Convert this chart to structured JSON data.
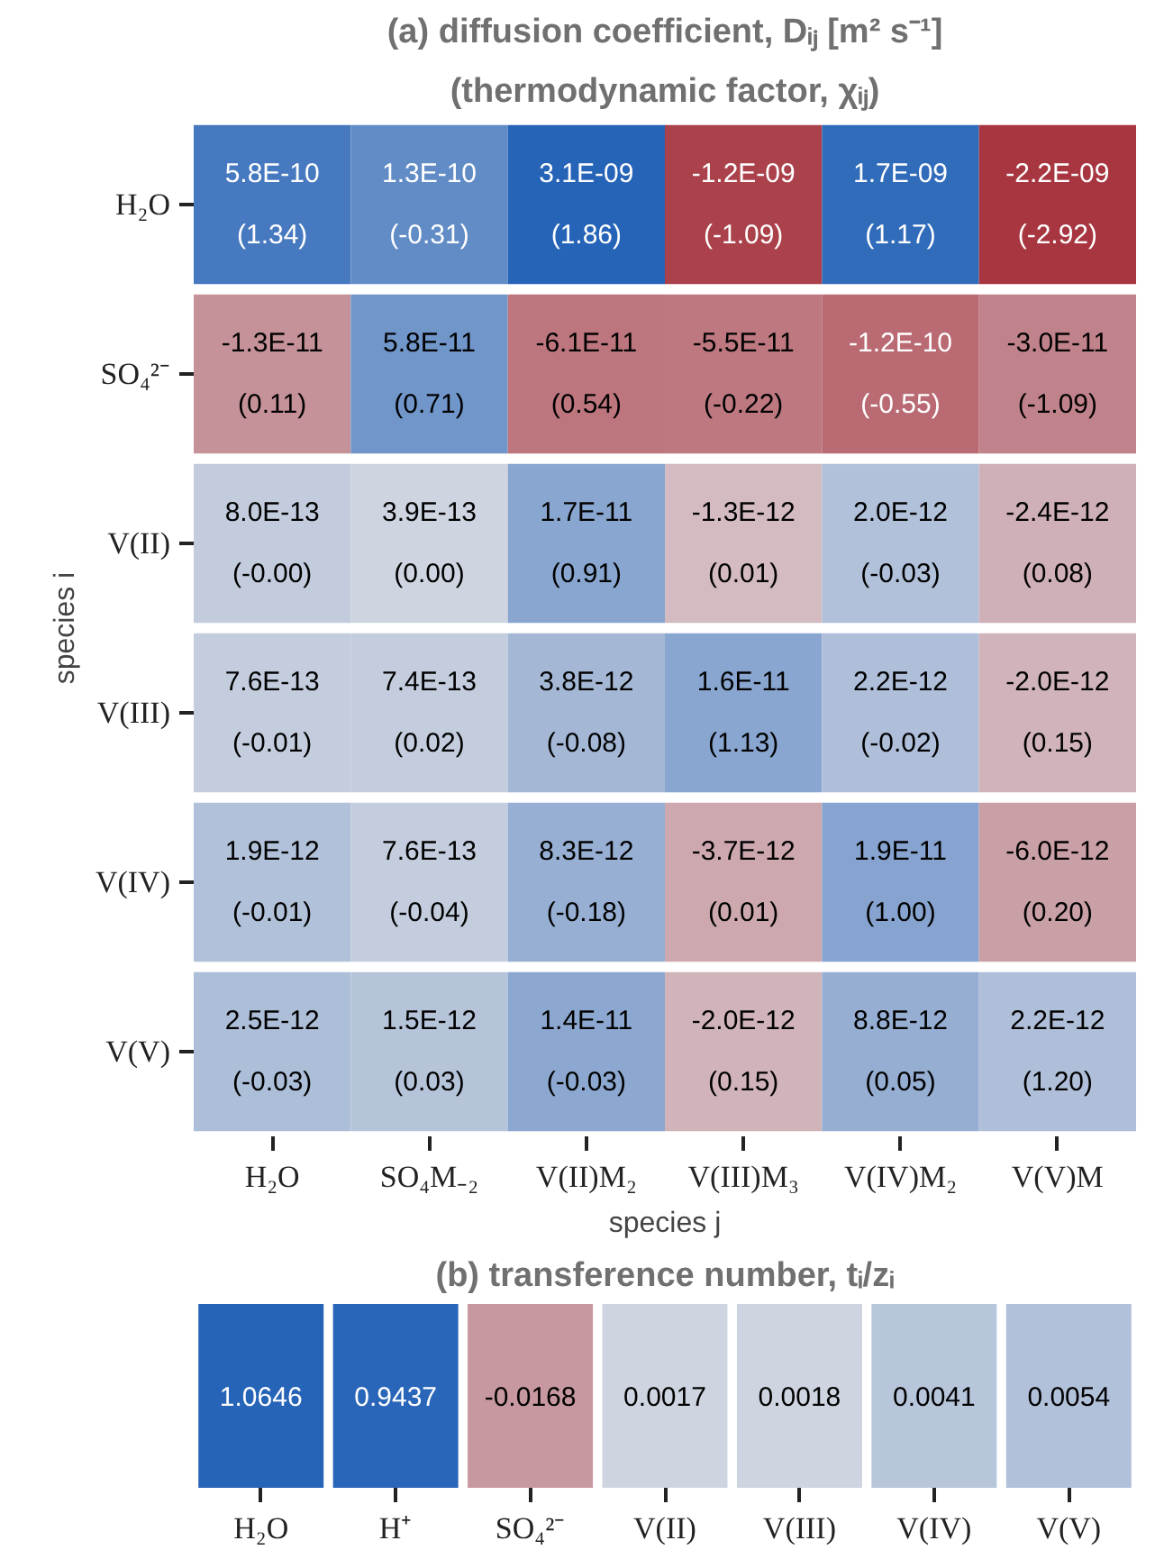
{
  "chart_data": [
    {
      "type": "heatmap",
      "title": "(a) diffusion coefficient, Dᵢⱼ [m² s⁻¹]",
      "subtitle": "(thermodynamic factor, χᵢⱼ)",
      "xlabel": "species j",
      "ylabel": "species i",
      "categories": [
        "H₂O",
        "SO₄M₋₂",
        "V(II)M₂",
        "V(III)M₃",
        "V(IV)M₂",
        "V(V)M"
      ],
      "y_categories": [
        "H₂O",
        "SO₄²⁻",
        "V(II)",
        "V(III)",
        "V(IV)",
        "V(V)"
      ],
      "cells": [
        [
          5.8e-10,
          1.3e-10,
          3.1e-09,
          -1.2e-09,
          1.7e-09,
          -2.2e-09
        ],
        [
          -1.3e-11,
          5.8e-11,
          -6.1e-11,
          -5.5e-11,
          -1.2e-10,
          -3e-11
        ],
        [
          8e-13,
          3.9e-13,
          1.7e-11,
          -1.3e-12,
          2e-12,
          -2.4e-12
        ],
        [
          7.6e-13,
          7.4e-13,
          3.8e-12,
          1.6e-11,
          2.2e-12,
          -2e-12
        ],
        [
          1.9e-12,
          7.6e-13,
          8.3e-12,
          -3.7e-12,
          1.9e-11,
          -6e-12
        ],
        [
          2.5e-12,
          1.5e-12,
          1.4e-11,
          -2e-12,
          8.8e-12,
          2.2e-12
        ]
      ],
      "cell_labels": [
        [
          "5.8E-10",
          "1.3E-10",
          "3.1E-09",
          "-1.2E-09",
          "1.7E-09",
          "-2.2E-09"
        ],
        [
          "-1.3E-11",
          "5.8E-11",
          "-6.1E-11",
          "-5.5E-11",
          "-1.2E-10",
          "-3.0E-11"
        ],
        [
          "8.0E-13",
          "3.9E-13",
          "1.7E-11",
          "-1.3E-12",
          "2.0E-12",
          "-2.4E-12"
        ],
        [
          "7.6E-13",
          "7.4E-13",
          "3.8E-12",
          "1.6E-11",
          "2.2E-12",
          "-2.0E-12"
        ],
        [
          "1.9E-12",
          "7.6E-13",
          "8.3E-12",
          "-3.7E-12",
          "1.9E-11",
          "-6.0E-12"
        ],
        [
          "2.5E-12",
          "1.5E-12",
          "1.4E-11",
          "-2.0E-12",
          "8.8E-12",
          "2.2E-12"
        ]
      ],
      "annotations": [
        "(1.34)",
        "(-0.31)",
        "(1.86)",
        "(-1.09)",
        "(1.17)",
        "(-2.92)",
        "(0.11)",
        "(0.71)",
        "(0.54)",
        "(-0.22)",
        "(-0.55)",
        "(-1.09)",
        "(-0.00)",
        "(0.00)",
        "(0.91)",
        "(0.01)",
        "(-0.03)",
        "(0.08)",
        "(-0.01)",
        "(0.02)",
        "(-0.08)",
        "(1.13)",
        "(-0.02)",
        "(0.15)",
        "(-0.01)",
        "(-0.04)",
        "(-0.18)",
        "(0.01)",
        "(1.00)",
        "(0.20)",
        "(-0.03)",
        "(0.03)",
        "(-0.03)",
        "(0.15)",
        "(0.05)",
        "(1.20)"
      ]
    },
    {
      "type": "heatmap",
      "title": "(b) transference number, tᵢ/zᵢ",
      "categories": [
        "H₂O",
        "H⁺",
        "SO₄²⁻",
        "V(II)",
        "V(III)",
        "V(IV)",
        "V(V)"
      ],
      "y_categories": [
        null
      ],
      "cells": [
        [
          1.0646,
          0.9437,
          -0.0168,
          0.0017,
          0.0018,
          0.0041,
          0.0054
        ]
      ],
      "data_labels": true
    }
  ]
}
